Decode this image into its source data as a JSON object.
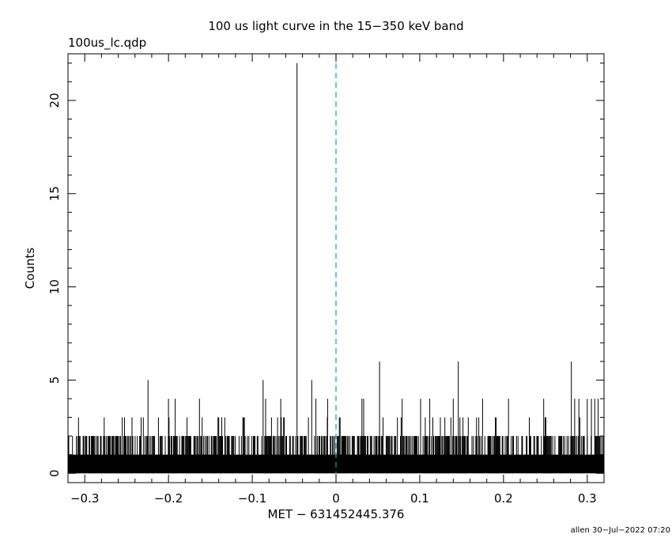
{
  "chart_data": {
    "type": "histogram",
    "title": "100 us light curve in the 15−350 keV band",
    "file_label": "100us_lc.qdp",
    "xlabel": "MET − 631452445.376",
    "ylabel": "Counts",
    "footer": "allen 30−Jul−2022 07:20",
    "xlim": [
      -0.32,
      0.32
    ],
    "ylim": [
      -0.5,
      22.5
    ],
    "x_ticks": [
      -0.3,
      -0.2,
      -0.1,
      0,
      0.1,
      0.2,
      0.3
    ],
    "x_tick_labels": [
      "−0.3",
      "−0.2",
      "−0.1",
      "0",
      "0.1",
      "0.2",
      "0.3"
    ],
    "y_ticks": [
      0,
      5,
      10,
      15,
      20
    ],
    "y_tick_labels": [
      "0",
      "5",
      "10",
      "15",
      "20"
    ],
    "bin_width": 0.0001,
    "baseline_counts": 1,
    "marker_x": 0,
    "marker_color": "#00a0c8",
    "peaks": [
      {
        "x": -0.0465,
        "y": 22
      },
      {
        "x": -0.2245,
        "y": 5
      },
      {
        "x": -0.2,
        "y": 4
      },
      {
        "x": -0.192,
        "y": 4
      },
      {
        "x": -0.163,
        "y": 4
      },
      {
        "x": -0.087,
        "y": 5
      },
      {
        "x": -0.084,
        "y": 4
      },
      {
        "x": -0.066,
        "y": 4
      },
      {
        "x": -0.029,
        "y": 5
      },
      {
        "x": -0.024,
        "y": 4
      },
      {
        "x": -0.01,
        "y": 4
      },
      {
        "x": 0.031,
        "y": 4
      },
      {
        "x": 0.033,
        "y": 4
      },
      {
        "x": 0.052,
        "y": 6
      },
      {
        "x": 0.079,
        "y": 4
      },
      {
        "x": 0.101,
        "y": 4
      },
      {
        "x": 0.112,
        "y": 4
      },
      {
        "x": 0.14,
        "y": 4
      },
      {
        "x": 0.146,
        "y": 6
      },
      {
        "x": 0.175,
        "y": 4
      },
      {
        "x": 0.206,
        "y": 4
      },
      {
        "x": 0.248,
        "y": 4
      },
      {
        "x": 0.281,
        "y": 6
      },
      {
        "x": 0.285,
        "y": 4
      },
      {
        "x": 0.29,
        "y": 4
      },
      {
        "x": 0.3,
        "y": 4
      },
      {
        "x": 0.305,
        "y": 4
      },
      {
        "x": 0.309,
        "y": 4
      },
      {
        "x": 0.313,
        "y": 4
      }
    ]
  }
}
